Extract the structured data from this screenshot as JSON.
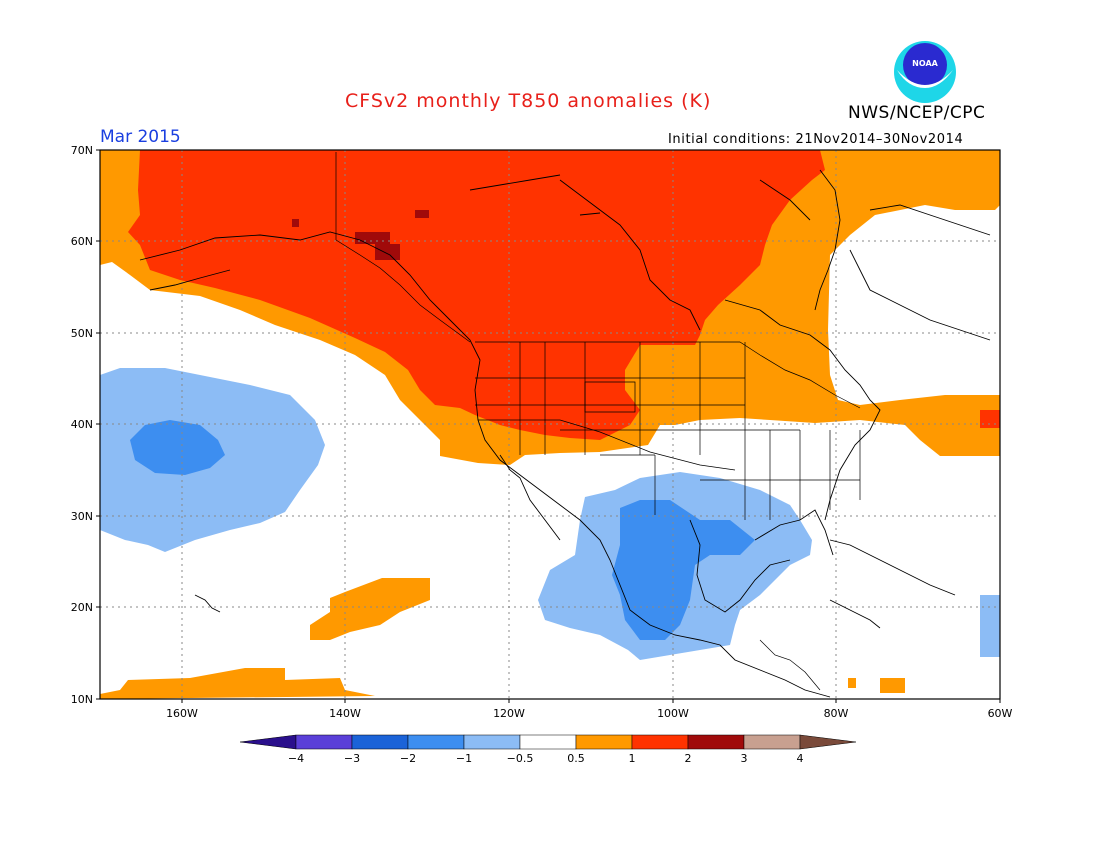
{
  "title": "CFSv2 monthly T850 anomalies (K)",
  "credit": "NWS/NCEP/CPC",
  "logo_text": "NOAA",
  "valid_month": "Mar 2015",
  "initial_conditions": "Initial conditions: 21Nov2014–30Nov2014",
  "map": {
    "lat_labels": [
      "70N",
      "60N",
      "50N",
      "40N",
      "30N",
      "20N",
      "10N"
    ],
    "lon_labels": [
      "160W",
      "140W",
      "120W",
      "100W",
      "80W",
      "60W"
    ]
  },
  "colorbar": {
    "labels": [
      "−4",
      "−3",
      "−2",
      "−1",
      "−0.5",
      "0.5",
      "1",
      "2",
      "3",
      "4"
    ],
    "colors": [
      "#2a0f8c",
      "#5a3fd8",
      "#1b63d8",
      "#3d8ef0",
      "#8cbcf5",
      "#ffffff",
      "#ff9900",
      "#ff3300",
      "#a00a0a",
      "#c8a090",
      "#7a4a3a"
    ]
  },
  "colors": {
    "orange": "#ff9900",
    "red": "#ff3300",
    "darkred": "#a00a0a",
    "lightblue": "#8cbcf5",
    "blue": "#3d8ef0"
  }
}
